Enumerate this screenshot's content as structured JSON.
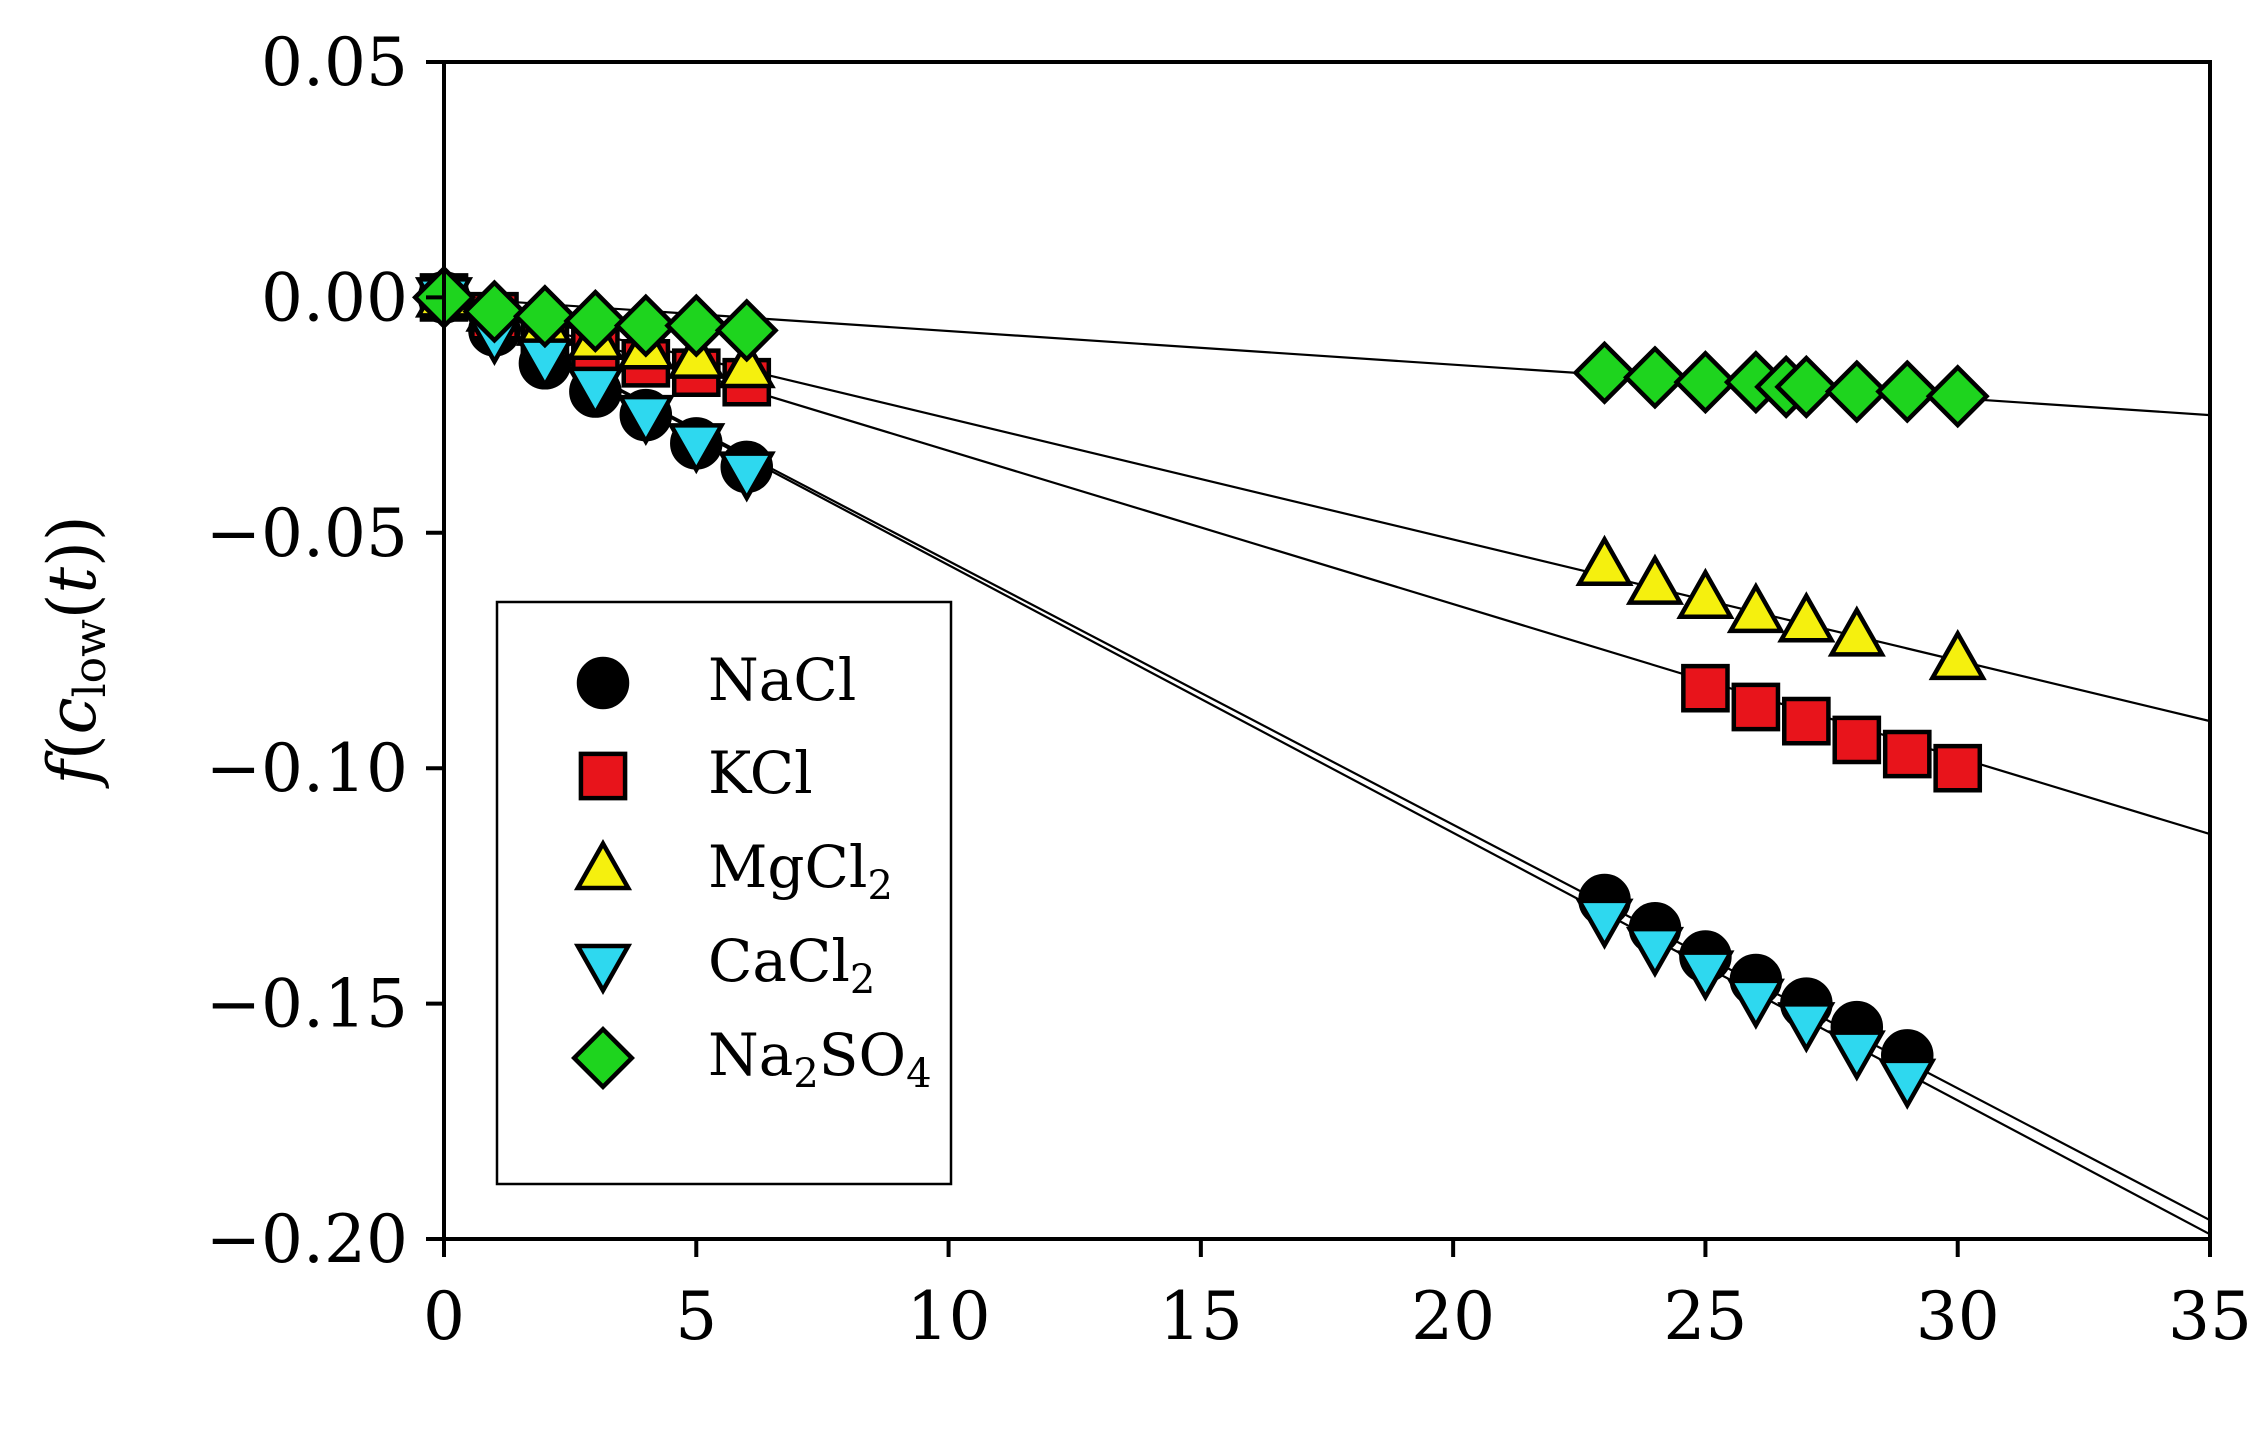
{
  "chart_data": {
    "type": "scatter",
    "title": "",
    "xlabel": "",
    "ylabel_parts": [
      "f",
      "(",
      "c",
      "low",
      "(",
      "t",
      "))"
    ],
    "xlim": [
      0,
      35
    ],
    "ylim": [
      -0.2,
      0.05
    ],
    "xticks": [
      0,
      5,
      10,
      15,
      20,
      25,
      30,
      35
    ],
    "yticks": [
      0.05,
      0.0,
      -0.05,
      -0.1,
      -0.15,
      -0.2
    ],
    "xtick_labels": [
      "0",
      "5",
      "10",
      "15",
      "20",
      "25",
      "30",
      "35"
    ],
    "ytick_labels": [
      "0.05",
      "0.00",
      "−0.05",
      "−0.10",
      "−0.15",
      "−0.20"
    ],
    "grid": false,
    "legend_position": "lower-left",
    "series": [
      {
        "name": "NaCl",
        "legend_label": [
          "NaCl"
        ],
        "marker": "circle",
        "color": "#000000",
        "x": [
          0,
          1,
          2,
          3,
          4,
          5,
          6,
          23,
          24,
          25,
          26,
          27,
          28,
          29
        ],
        "y": [
          0,
          -0.007,
          -0.014,
          -0.02,
          -0.025,
          -0.031,
          -0.036,
          -0.128,
          -0.134,
          -0.14,
          -0.145,
          -0.15,
          -0.155,
          -0.161
        ],
        "fit": [
          [
            0,
            0
          ],
          [
            35,
            -0.196
          ]
        ]
      },
      {
        "name": "KCl",
        "legend_label": [
          "KCl"
        ],
        "marker": "square",
        "color": "#e8141b",
        "x": [
          0,
          1,
          2,
          3,
          4,
          5,
          6,
          25,
          26,
          27,
          28,
          29,
          30
        ],
        "y": [
          0,
          -0.004,
          -0.008,
          -0.011,
          -0.014,
          -0.016,
          -0.018,
          -0.083,
          -0.087,
          -0.09,
          -0.094,
          -0.097,
          -0.1
        ],
        "fit": [
          [
            0,
            0
          ],
          [
            35,
            -0.114
          ]
        ]
      },
      {
        "name": "MgCl2",
        "legend_label": [
          "MgCl",
          "2",
          ""
        ],
        "marker": "triangle-up",
        "color": "#f5f00e",
        "x": [
          0,
          1,
          2,
          3,
          4,
          5,
          6,
          23,
          24,
          25,
          26,
          27,
          28,
          30
        ],
        "y": [
          0,
          -0.003,
          -0.006,
          -0.009,
          -0.011,
          -0.013,
          -0.015,
          -0.057,
          -0.061,
          -0.064,
          -0.067,
          -0.069,
          -0.072,
          -0.077
        ],
        "fit": [
          [
            0,
            0
          ],
          [
            35,
            -0.09
          ]
        ]
      },
      {
        "name": "CaCl2",
        "legend_label": [
          "CaCl",
          "2",
          ""
        ],
        "marker": "triangle-down",
        "color": "#2ed8ef",
        "x": [
          0,
          1,
          2,
          3,
          4,
          5,
          6,
          23,
          24,
          25,
          26,
          27,
          28,
          29
        ],
        "y": [
          0,
          -0.008,
          -0.013,
          -0.019,
          -0.025,
          -0.031,
          -0.037,
          -0.132,
          -0.138,
          -0.143,
          -0.149,
          -0.154,
          -0.16,
          -0.166
        ],
        "fit": [
          [
            0,
            0
          ],
          [
            35,
            -0.199
          ]
        ]
      },
      {
        "name": "Na2SO4",
        "legend_label": [
          "Na",
          "2",
          "SO",
          "4",
          ""
        ],
        "marker": "diamond",
        "color": "#1ed41e",
        "x": [
          0,
          1,
          2,
          3,
          4,
          5,
          6,
          23,
          24,
          25,
          26,
          26.6,
          27,
          28,
          29,
          30
        ],
        "y": [
          0,
          -0.003,
          -0.004,
          -0.005,
          -0.006,
          -0.006,
          -0.007,
          -0.016,
          -0.017,
          -0.018,
          -0.018,
          -0.019,
          -0.019,
          -0.02,
          -0.02,
          -0.021
        ],
        "fit": [
          [
            0,
            0
          ],
          [
            35,
            -0.025
          ]
        ]
      }
    ]
  }
}
